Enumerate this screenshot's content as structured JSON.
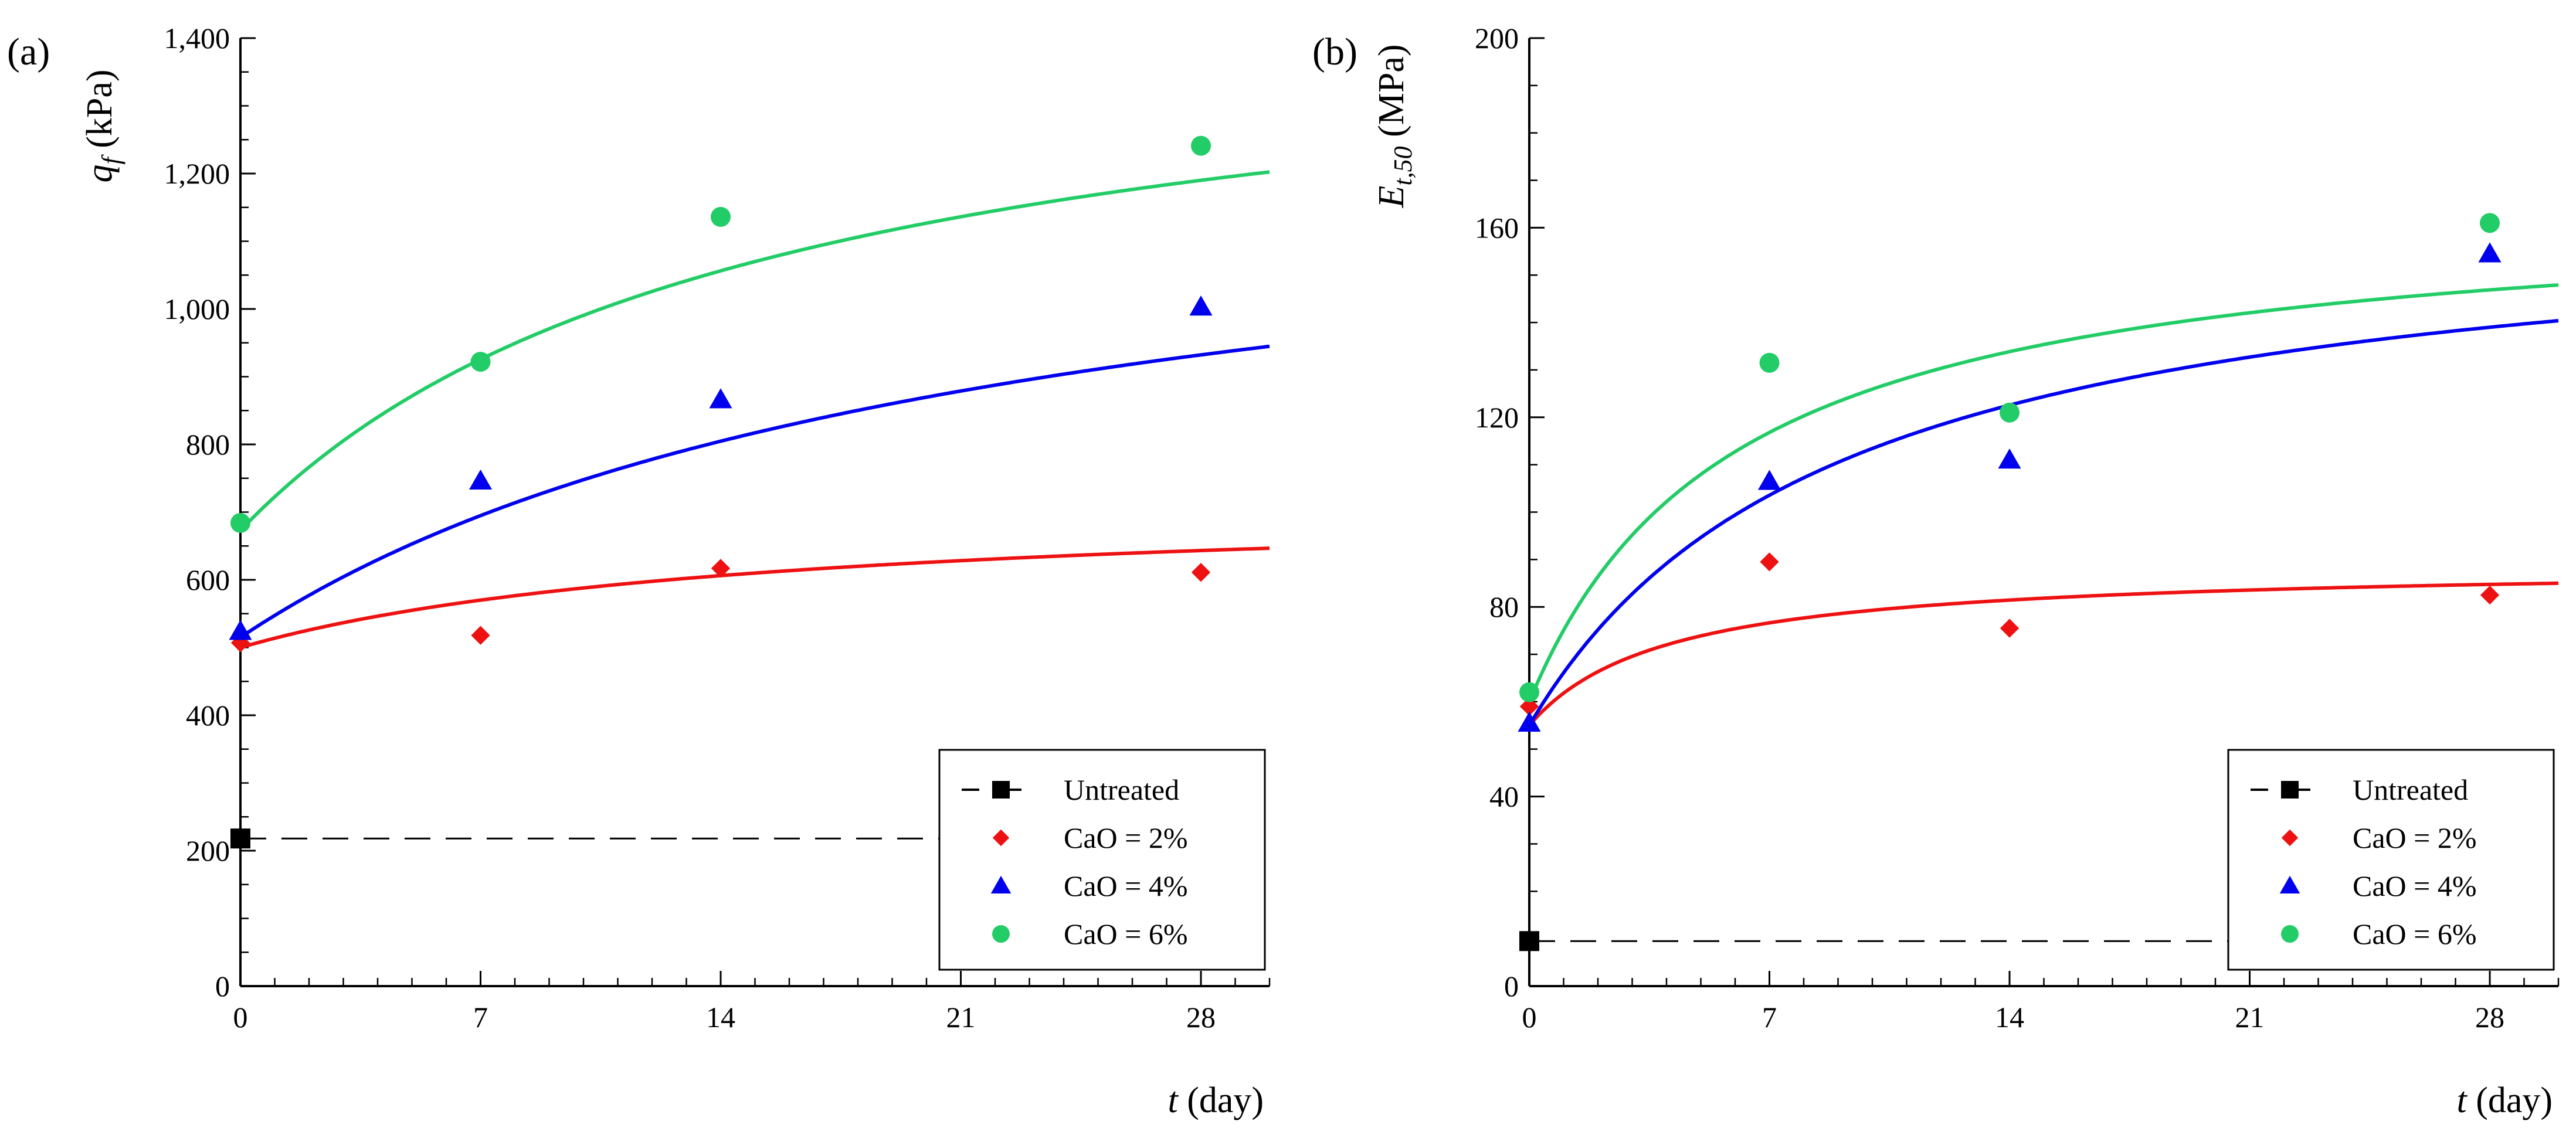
{
  "chart_data": [
    {
      "type": "scatter",
      "panel_label": "(a)",
      "ylabel_symbol": "q",
      "ylabel_sub": "f",
      "ylabel_unit": "(kPa)",
      "xlabel_symbol": "t",
      "xlabel_unit": "(day)",
      "xlim": [
        0,
        30
      ],
      "ylim": [
        0,
        1400
      ],
      "xticks": [
        0,
        7,
        14,
        21,
        28
      ],
      "yticks": [
        0,
        200,
        400,
        600,
        800,
        1000,
        1200,
        1400
      ],
      "ytick_labels": [
        "0",
        "200",
        "400",
        "600",
        "800",
        "1,000",
        "1,200",
        "1,400"
      ],
      "baseline": {
        "name": "Untreated",
        "x": 0,
        "y": 218,
        "line_to_x": 21
      },
      "series": [
        {
          "name": "CaO = 2%",
          "color": "#ee1111",
          "marker": "diamond",
          "x": [
            0,
            7,
            14,
            28
          ],
          "y": [
            507,
            518,
            617,
            611
          ],
          "fit": {
            "y0": 500,
            "ymax": 720,
            "k": 15
          }
        },
        {
          "name": "CaO = 4%",
          "color": "#0000ee",
          "marker": "triangle",
          "x": [
            0,
            7,
            14,
            28
          ],
          "y": [
            524,
            746,
            866,
            1003
          ],
          "fit": {
            "y0": 515,
            "ymax": 1260,
            "k": 22
          }
        },
        {
          "name": "CaO = 6%",
          "color": "#22cc66",
          "marker": "circle",
          "x": [
            0,
            7,
            14,
            28
          ],
          "y": [
            684,
            922,
            1136,
            1241
          ],
          "fit": {
            "y0": 673,
            "ymax": 1467,
            "k": 15
          }
        }
      ],
      "legend": [
        "Untreated",
        "CaO = 2%",
        "CaO = 4%",
        "CaO = 6%"
      ],
      "legend_position": "bottom-right"
    },
    {
      "type": "scatter",
      "panel_label": "(b)",
      "ylabel_symbol": "E",
      "ylabel_sub": "t,50",
      "ylabel_unit": "(MPa)",
      "xlabel_symbol": "t",
      "xlabel_unit": "(day)",
      "xlim": [
        0,
        30
      ],
      "ylim": [
        0,
        200
      ],
      "xticks": [
        0,
        7,
        14,
        21,
        28
      ],
      "yticks": [
        0,
        40,
        80,
        120,
        160,
        200
      ],
      "ytick_labels": [
        "0",
        "40",
        "80",
        "120",
        "160",
        "200"
      ],
      "baseline": {
        "name": "Untreated",
        "x": 0,
        "y": 9.5,
        "line_to_x": 21
      },
      "series": [
        {
          "name": "CaO = 2%",
          "color": "#ee1111",
          "marker": "diamond",
          "x": [
            0,
            7,
            14,
            28
          ],
          "y": [
            59,
            89.5,
            75.5,
            82.5
          ],
          "fit": {
            "y0": 55,
            "ymax": 89,
            "k": 4
          }
        },
        {
          "name": "CaO = 4%",
          "color": "#0000ee",
          "marker": "triangle",
          "x": [
            0,
            7,
            14,
            28
          ],
          "y": [
            55.5,
            106.5,
            111,
            154.5
          ],
          "fit": {
            "y0": 55,
            "ymax": 166,
            "k": 9
          }
        },
        {
          "name": "CaO = 6%",
          "color": "#22cc66",
          "marker": "circle",
          "x": [
            0,
            7,
            14,
            28
          ],
          "y": [
            62,
            131.5,
            121,
            161
          ],
          "fit": {
            "y0": 60,
            "ymax": 165.5,
            "k": 6
          }
        }
      ],
      "legend": [
        "Untreated",
        "CaO = 2%",
        "CaO = 4%",
        "CaO = 6%"
      ],
      "legend_position": "bottom-right"
    }
  ]
}
